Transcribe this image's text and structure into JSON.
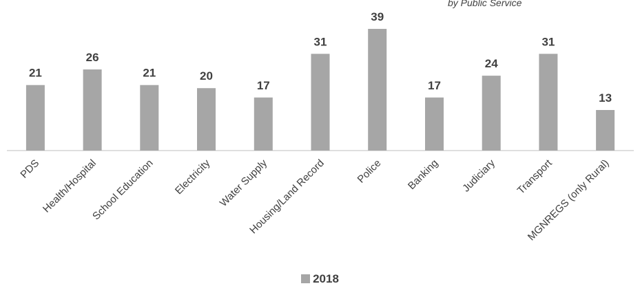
{
  "subtitle": "by Public Service",
  "chart_data": {
    "type": "bar",
    "categories": [
      "PDS",
      "Health/Hospital",
      "School Education",
      "Electricity",
      "Water Supply",
      "Housing/Land Record",
      "Police",
      "Banking",
      "Judiciary",
      "Transport",
      "MGNREGS (only Rural)"
    ],
    "series": [
      {
        "name": "2018",
        "values": [
          21,
          26,
          21,
          20,
          17,
          31,
          39,
          17,
          24,
          31,
          13
        ]
      }
    ],
    "ylim": [
      0,
      39
    ],
    "grid": false,
    "legend_position": "bottom",
    "bar_color": "#a6a6a6",
    "label_color": "#404040"
  }
}
